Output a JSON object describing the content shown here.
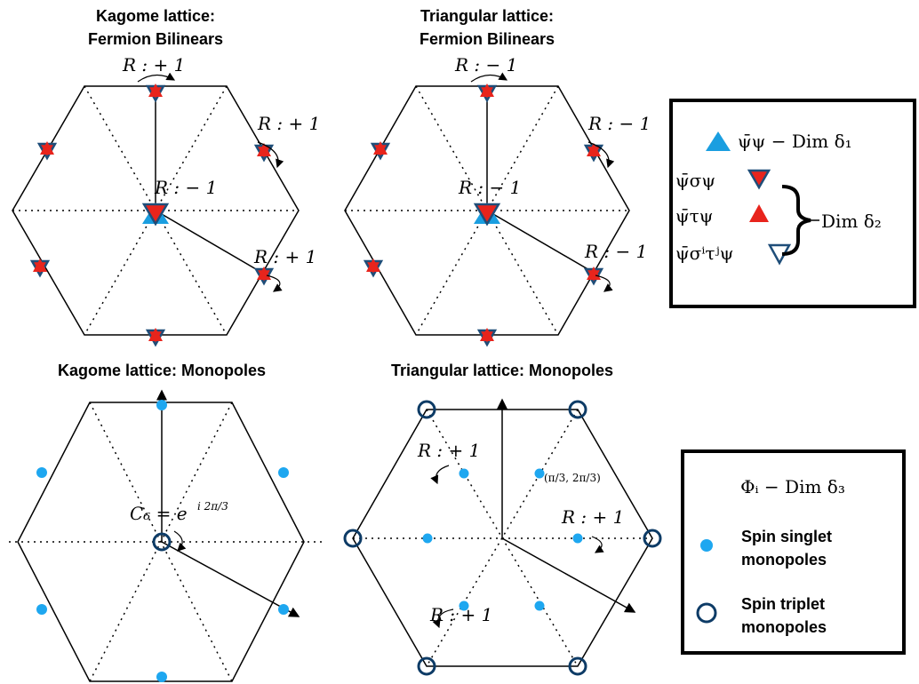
{
  "titles": {
    "kagome_bilinears_line1": "Kagome lattice:",
    "kagome_bilinears_line2": "Fermion Bilinears",
    "triangular_bilinears_line1": "Triangular lattice:",
    "triangular_bilinears_line2": "Fermion Bilinears",
    "kagome_monopoles": "Kagome lattice: Monopoles",
    "triangular_monopoles": "Triangular lattice: Monopoles"
  },
  "kagome_bilinears": {
    "labels": [
      "R : + 1",
      "R : + 1",
      "R : − 1",
      "R : + 1"
    ]
  },
  "triangular_bilinears": {
    "labels": [
      "R : − 1",
      "R : − 1",
      "R : − 1",
      "R : − 1"
    ]
  },
  "kagome_monopoles": {
    "c6_label": "C₆ = e",
    "c6_exponent": "i 2π/3"
  },
  "triangular_monopoles": {
    "labels": [
      "R : + 1",
      "R : + 1",
      "R : + 1"
    ],
    "momentum_label": "(π/3, 2π/3)"
  },
  "legend_bilinears": {
    "singlet_text": "ψ̄ψ − Dim δ₁",
    "sigma_text": "ψ̄σψ",
    "tau_text": "ψ̄τψ",
    "sigmatau_text": "ψ̄σⁱτʲψ",
    "dim2_text": "Dim δ₂"
  },
  "legend_monopoles": {
    "header": "Φᵢ − Dim δ₃",
    "singlet_line1": "Spin singlet",
    "singlet_line2": "monopoles",
    "triplet_line1": "Spin triplet",
    "triplet_line2": "monopoles"
  },
  "colors": {
    "blue_triangle": "#1a9ee0",
    "red_triangle": "#e8241c",
    "navy_outline": "#1f4e79",
    "monopole_dot": "#1ea7f0",
    "triplet_ring": "#0d3b66"
  }
}
